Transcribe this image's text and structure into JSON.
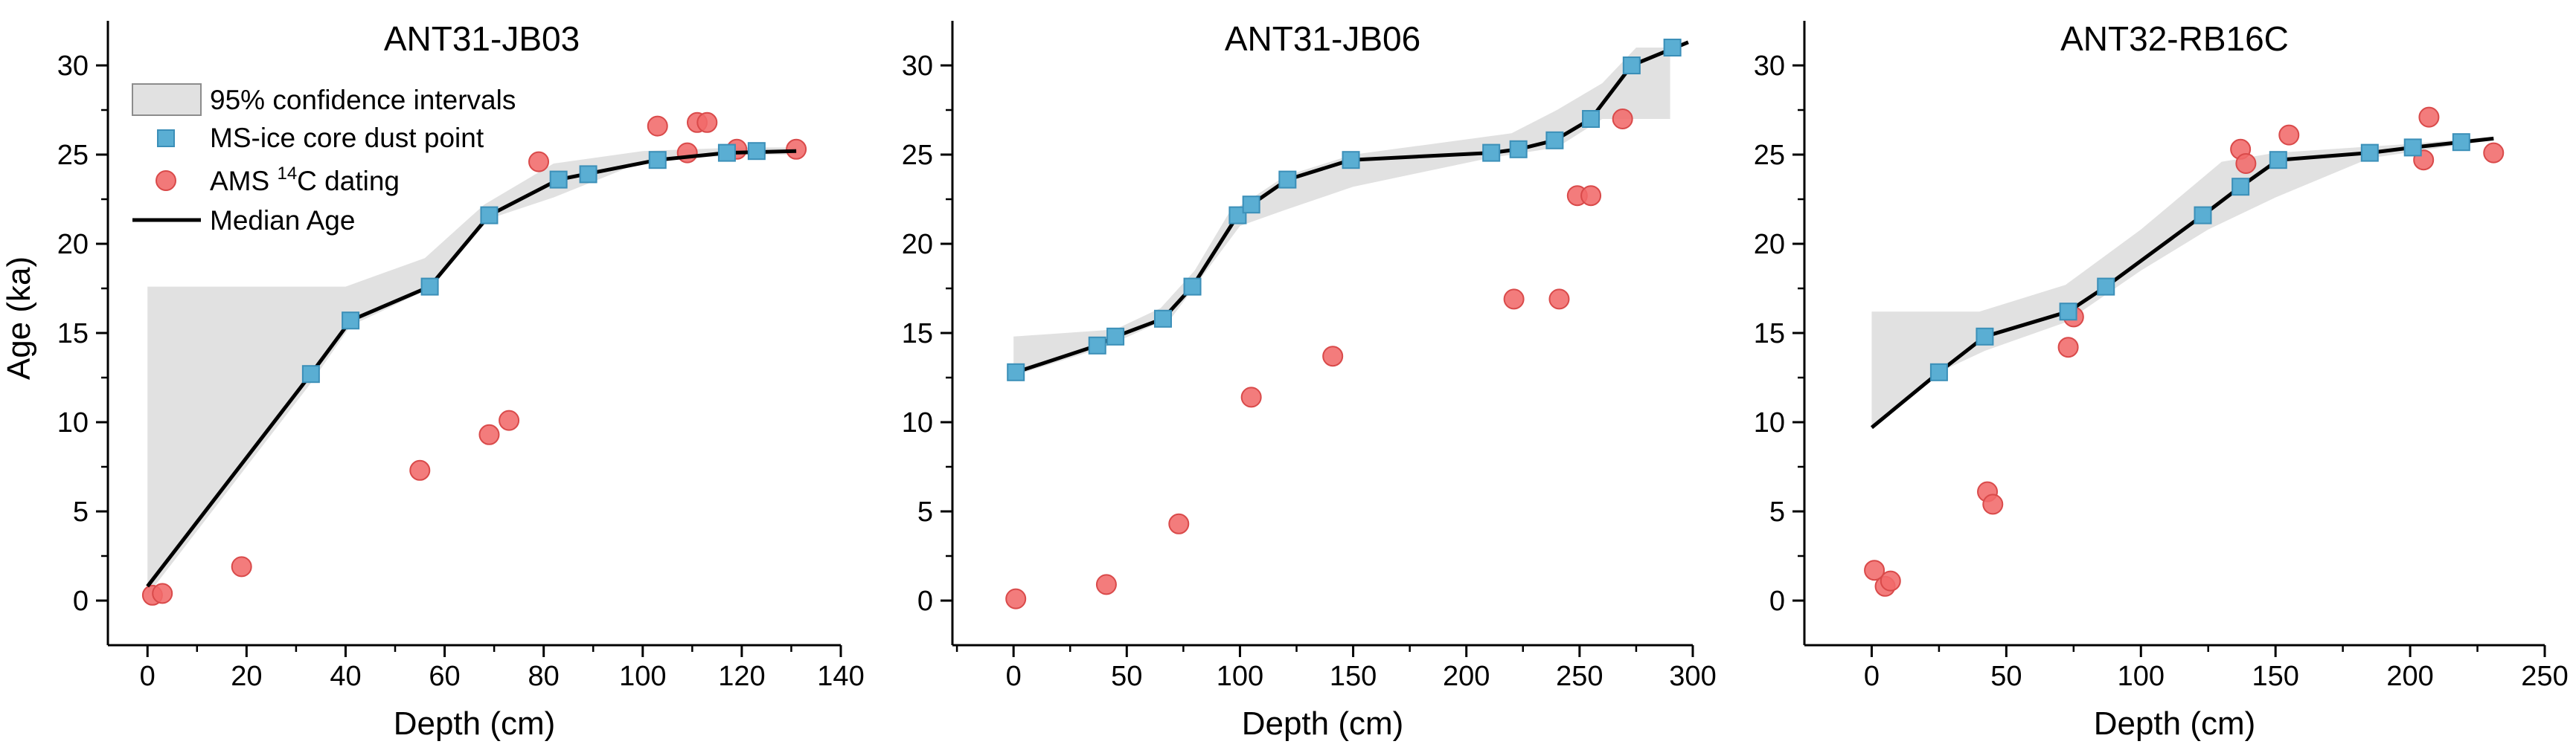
{
  "figure": {
    "ylabel": "Age (ka)",
    "xlabel": "Depth (cm)",
    "legend": {
      "ci_label": "95% confidence intervals",
      "ms_label": "MS-ice core dust point",
      "ams_label_pre": "AMS ",
      "ams_label_sup": "14",
      "ams_label_post": "C dating",
      "median_label": "Median Age"
    },
    "colors": {
      "ci_fill": "#e1e1e1",
      "ms_marker": "#5aaed3",
      "ms_marker_edge": "#3b8fb8",
      "ams_marker": "#f16a6a",
      "ams_marker_edge": "#d94a4a",
      "median_line": "#000000"
    }
  },
  "chart_data": [
    {
      "type": "line",
      "title": "ANT31-JB03",
      "xlabel": "Depth (cm)",
      "ylabel": "Age (ka)",
      "xlim": [
        -8,
        140
      ],
      "ylim": [
        -2.5,
        32.5
      ],
      "xticks": [
        0,
        20,
        40,
        60,
        80,
        100,
        120,
        140
      ],
      "yticks": [
        0,
        5,
        10,
        15,
        20,
        25,
        30
      ],
      "show_ylabel": true,
      "show_legend": true,
      "legend_position": "top-left",
      "ci_upper": [
        [
          0,
          17.6
        ],
        [
          40,
          17.6
        ],
        [
          56,
          19.2
        ],
        [
          68,
          22.2
        ],
        [
          82,
          24.5
        ],
        [
          100,
          25.2
        ],
        [
          120,
          25.4
        ],
        [
          131,
          25.4
        ]
      ],
      "ci_lower": [
        [
          0,
          0.3
        ],
        [
          33,
          12.2
        ],
        [
          41,
          15.4
        ],
        [
          57,
          17.5
        ],
        [
          69,
          21.4
        ],
        [
          82,
          22.6
        ],
        [
          100,
          24.6
        ],
        [
          120,
          25.0
        ],
        [
          131,
          25.0
        ]
      ],
      "median": [
        [
          0,
          0.8
        ],
        [
          33,
          12.7
        ],
        [
          41,
          15.7
        ],
        [
          57,
          17.6
        ],
        [
          69,
          21.6
        ],
        [
          83,
          23.6
        ],
        [
          103,
          24.7
        ],
        [
          117,
          25.1
        ],
        [
          131,
          25.2
        ]
      ],
      "ms_points": [
        [
          33,
          12.7
        ],
        [
          41,
          15.7
        ],
        [
          57,
          17.6
        ],
        [
          69,
          21.6
        ],
        [
          83,
          23.6
        ],
        [
          89,
          23.9
        ],
        [
          103,
          24.7
        ],
        [
          117,
          25.1
        ],
        [
          123,
          25.2
        ]
      ],
      "ams_points": [
        [
          1,
          0.3
        ],
        [
          3,
          0.4
        ],
        [
          19,
          1.9
        ],
        [
          55,
          7.3
        ],
        [
          69,
          9.3
        ],
        [
          73,
          10.1
        ],
        [
          79,
          24.6
        ],
        [
          103,
          26.6
        ],
        [
          109,
          25.1
        ],
        [
          111,
          26.8
        ],
        [
          113,
          26.8
        ],
        [
          119,
          25.3
        ],
        [
          131,
          25.3
        ]
      ]
    },
    {
      "type": "line",
      "title": "ANT31-JB06",
      "xlabel": "Depth (cm)",
      "ylabel": "Age (ka)",
      "xlim": [
        -27,
        300
      ],
      "ylim": [
        -2.5,
        32.5
      ],
      "xticks": [
        0,
        50,
        100,
        150,
        200,
        250,
        300
      ],
      "yticks": [
        0,
        5,
        10,
        15,
        20,
        25,
        30
      ],
      "show_ylabel": false,
      "show_legend": false,
      "ci_upper": [
        [
          0,
          14.8
        ],
        [
          45,
          15.2
        ],
        [
          65,
          16.4
        ],
        [
          80,
          18.5
        ],
        [
          95,
          21.7
        ],
        [
          120,
          23.8
        ],
        [
          150,
          25.0
        ],
        [
          220,
          26.2
        ],
        [
          240,
          27.5
        ],
        [
          260,
          29.0
        ],
        [
          275,
          31.0
        ],
        [
          290,
          31.0
        ]
      ],
      "ci_lower": [
        [
          0,
          12.6
        ],
        [
          40,
          14.2
        ],
        [
          70,
          15.9
        ],
        [
          100,
          21.0
        ],
        [
          120,
          21.9
        ],
        [
          150,
          23.2
        ],
        [
          210,
          24.8
        ],
        [
          240,
          25.4
        ],
        [
          260,
          27.0
        ],
        [
          290,
          27.0
        ]
      ],
      "median": [
        [
          1,
          12.8
        ],
        [
          37,
          14.3
        ],
        [
          45,
          14.8
        ],
        [
          66,
          15.8
        ],
        [
          79,
          17.6
        ],
        [
          99,
          21.6
        ],
        [
          105,
          22.2
        ],
        [
          121,
          23.6
        ],
        [
          149,
          24.7
        ],
        [
          211,
          25.1
        ],
        [
          223,
          25.3
        ],
        [
          239,
          25.8
        ],
        [
          255,
          27.0
        ],
        [
          273,
          30.0
        ],
        [
          298,
          31.3
        ]
      ],
      "ms_points": [
        [
          1,
          12.8
        ],
        [
          37,
          14.3
        ],
        [
          45,
          14.8
        ],
        [
          66,
          15.8
        ],
        [
          79,
          17.6
        ],
        [
          99,
          21.6
        ],
        [
          105,
          22.2
        ],
        [
          121,
          23.6
        ],
        [
          149,
          24.7
        ],
        [
          211,
          25.1
        ],
        [
          223,
          25.3
        ],
        [
          239,
          25.8
        ],
        [
          255,
          27.0
        ],
        [
          273,
          30.0
        ],
        [
          291,
          31.0
        ]
      ],
      "ams_points": [
        [
          1,
          0.1
        ],
        [
          41,
          0.9
        ],
        [
          73,
          4.3
        ],
        [
          105,
          11.4
        ],
        [
          141,
          13.7
        ],
        [
          221,
          16.9
        ],
        [
          241,
          16.9
        ],
        [
          249,
          22.7
        ],
        [
          255,
          22.7
        ],
        [
          269,
          27.0
        ]
      ]
    },
    {
      "type": "line",
      "title": "ANT32-RB16C",
      "xlabel": "Depth (cm)",
      "ylabel": "Age (ka)",
      "xlim": [
        -25,
        250
      ],
      "ylim": [
        -2.5,
        32.5
      ],
      "xticks": [
        0,
        50,
        100,
        150,
        200,
        250
      ],
      "yticks": [
        0,
        5,
        10,
        15,
        20,
        25,
        30
      ],
      "show_ylabel": false,
      "show_legend": false,
      "ci_upper": [
        [
          0,
          16.2
        ],
        [
          40,
          16.2
        ],
        [
          72,
          17.7
        ],
        [
          100,
          20.8
        ],
        [
          130,
          24.6
        ],
        [
          150,
          25.1
        ],
        [
          200,
          25.6
        ],
        [
          230,
          26.0
        ]
      ],
      "ci_lower": [
        [
          0,
          9.6
        ],
        [
          25,
          12.8
        ],
        [
          42,
          14.0
        ],
        [
          72,
          15.6
        ],
        [
          100,
          18.5
        ],
        [
          125,
          20.8
        ],
        [
          150,
          22.6
        ],
        [
          185,
          24.8
        ],
        [
          230,
          25.8
        ]
      ],
      "median": [
        [
          0,
          9.7
        ],
        [
          25,
          12.8
        ],
        [
          42,
          14.8
        ],
        [
          73,
          16.2
        ],
        [
          87,
          17.6
        ],
        [
          123,
          21.6
        ],
        [
          137,
          23.2
        ],
        [
          151,
          24.7
        ],
        [
          185,
          25.1
        ],
        [
          201,
          25.4
        ],
        [
          219,
          25.7
        ],
        [
          231,
          25.9
        ]
      ],
      "ms_points": [
        [
          25,
          12.8
        ],
        [
          42,
          14.8
        ],
        [
          73,
          16.2
        ],
        [
          87,
          17.6
        ],
        [
          123,
          21.6
        ],
        [
          137,
          23.2
        ],
        [
          151,
          24.7
        ],
        [
          185,
          25.1
        ],
        [
          201,
          25.4
        ],
        [
          219,
          25.7
        ]
      ],
      "ams_points": [
        [
          1,
          1.7
        ],
        [
          5,
          0.8
        ],
        [
          7,
          1.1
        ],
        [
          43,
          6.1
        ],
        [
          45,
          5.4
        ],
        [
          73,
          14.2
        ],
        [
          75,
          15.9
        ],
        [
          137,
          25.3
        ],
        [
          139,
          24.5
        ],
        [
          155,
          26.1
        ],
        [
          205,
          24.7
        ],
        [
          207,
          27.1
        ],
        [
          231,
          25.1
        ]
      ]
    }
  ]
}
